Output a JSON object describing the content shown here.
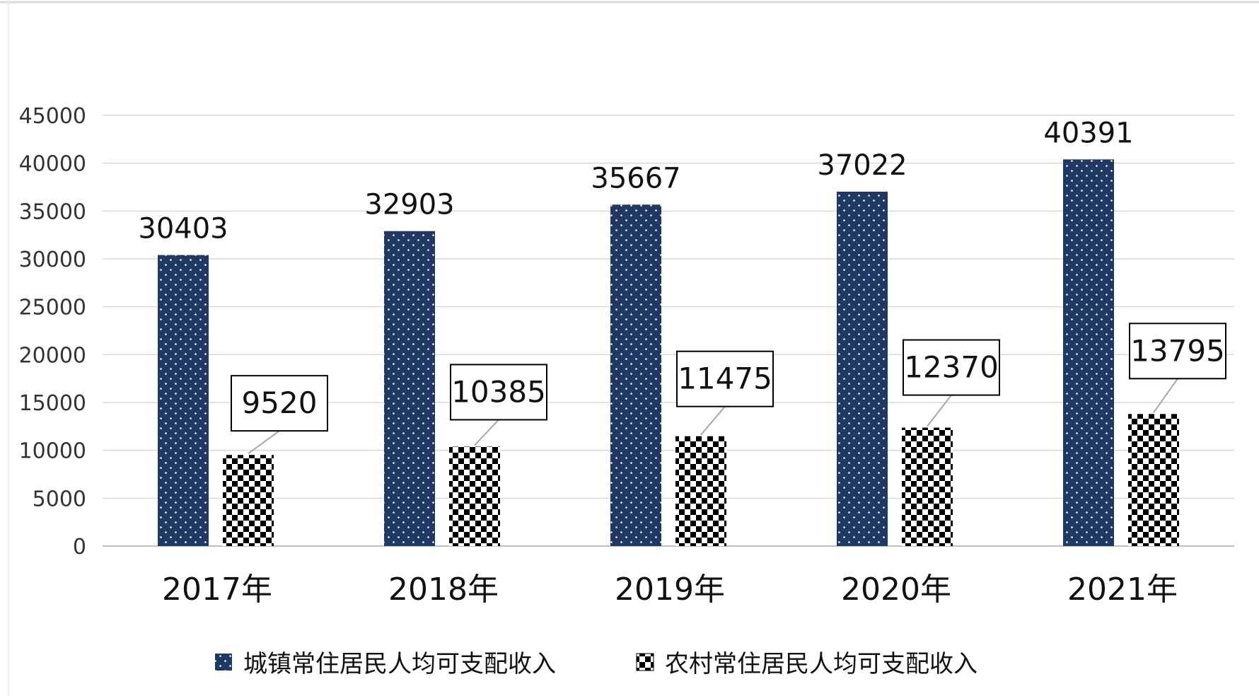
{
  "chart_data": {
    "type": "bar",
    "categories": [
      "2017年",
      "2018年",
      "2019年",
      "2020年",
      "2021年"
    ],
    "series": [
      {
        "name": "城镇常住居民人均可支配收入",
        "values": [
          30403,
          32903,
          35667,
          37022,
          40391
        ],
        "color": "#1f3864"
      },
      {
        "name": "农村常住居民人均可支配收入",
        "values": [
          9520,
          10385,
          11475,
          12370,
          13795
        ],
        "color": "#000000"
      }
    ],
    "yticks": [
      "0",
      "5000",
      "10000",
      "15000",
      "20000",
      "25000",
      "30000",
      "35000",
      "40000",
      "45000"
    ],
    "ylim": [
      0,
      45000
    ],
    "grid": true,
    "legend_position": "bottom",
    "title": "",
    "xlabel": "",
    "ylabel": ""
  }
}
